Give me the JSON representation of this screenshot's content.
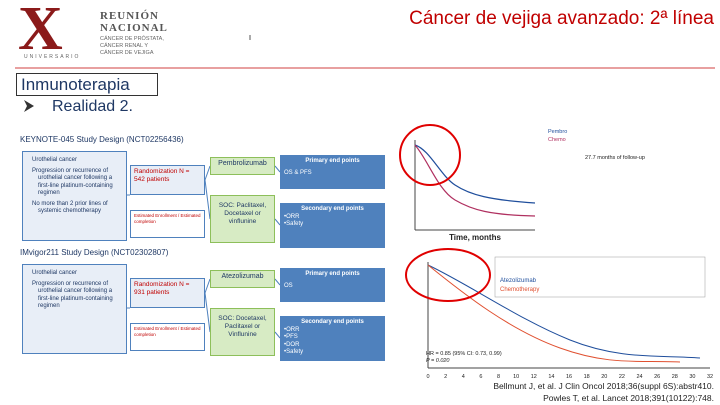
{
  "header": {
    "logo_mark": "X",
    "logo_title": "REUNIÓN NACIONAL",
    "logo_lines": [
      "CÁNCER DE PRÓSTATA,",
      "CÁNCER RENAL Y",
      "CÁNCER DE VEJIGA"
    ],
    "logo_caption": "UNIVERSARIO",
    "title": "Cáncer de vejiga avanzado: 2ª línea"
  },
  "section": "Inmunoterapia",
  "bullet": "Realidad 2.",
  "studies": [
    {
      "title": "KEYNOTE-045 Study Design (NCT02256436)",
      "criteria": [
        "Urothelial cancer",
        "Progression or recurrence of urothelial cancer following a first-line platinum-containing regimen",
        "No more than 2 prior lines of systemic chemotherapy"
      ],
      "randomization": "Randomization N = 542 patients",
      "dates": "Estimated Enrollment / Estimated completion",
      "arm": "Pembrolizumab",
      "soc": "SOC: Paclitaxel, Docetaxel or vinflunine",
      "primary_title": "Primary end points",
      "primary": "OS & PFS",
      "secondary_title": "Secondary end points",
      "secondary": [
        "•ORR",
        "•Safety"
      ]
    },
    {
      "title": "IMvigor211 Study Design (NCT02302807)",
      "criteria": [
        "Urothelial cancer",
        "Progression or recurrence of urothelial cancer following a first-line platinum-containing regimen"
      ],
      "randomization": "Randomization N = 931 patients",
      "dates": "Estimated Enrollment / Estimated completion",
      "arm": "Atezolizumab",
      "soc": "SOC: Docetaxel, Paclitaxel or Vinflunine",
      "primary_title": "Primary end points",
      "primary": "OS",
      "secondary_title": "Secondary end points",
      "secondary": [
        "•ORR",
        "•PFS",
        "•DOR",
        "•Safety"
      ]
    }
  ],
  "charts": [
    {
      "xlabel": "Time, months",
      "annotation": "27.7 months of follow-up",
      "legend": [
        "Pembro",
        "Chemo"
      ]
    },
    {
      "legend": [
        "Atezolizumab",
        "Chemotherapy"
      ],
      "hr": "HR = 0.85 (95% CI: 0.73, 0.99)",
      "p": "P = 0.020",
      "xticks": [
        "0",
        "2",
        "4",
        "6",
        "8",
        "10",
        "12",
        "14",
        "16",
        "18",
        "20",
        "22",
        "24",
        "26",
        "28",
        "30",
        "32"
      ]
    }
  ],
  "references": [
    "Bellmunt J, et al. J Clin Oncol 2018;36(suppl 6S):abstr410.",
    "Powles T, et al. Lancet 2018;391(10122):748."
  ]
}
